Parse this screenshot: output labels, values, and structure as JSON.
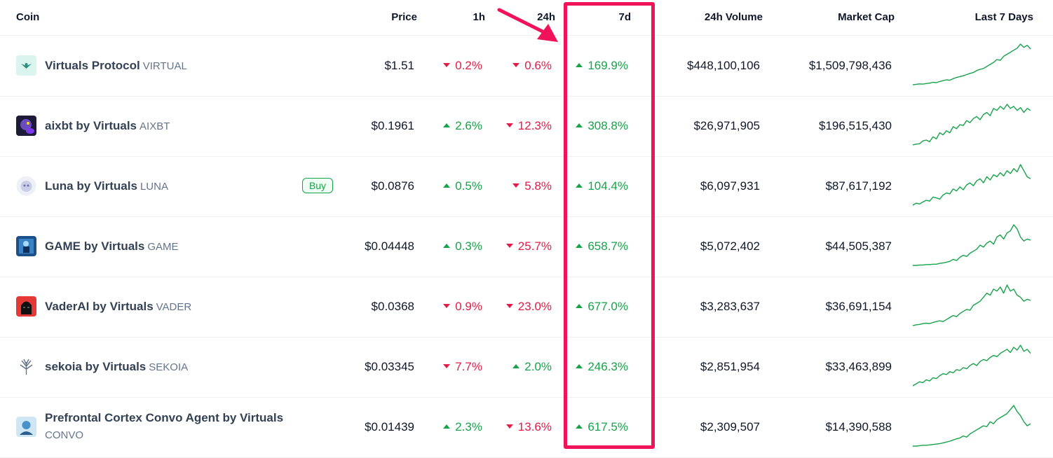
{
  "headers": {
    "coin": "Coin",
    "price": "Price",
    "h1": "1h",
    "h24": "24h",
    "d7": "7d",
    "volume": "24h Volume",
    "mcap": "Market Cap",
    "last7": "Last 7 Days"
  },
  "buy_label": "Buy",
  "colors": {
    "up": "#16a34a",
    "down": "#e11d48",
    "highlight": "#f0135a"
  },
  "rows": [
    {
      "name": "Virtuals Protocol",
      "symbol": "VIRTUAL",
      "price": "$1.51",
      "h1": "0.2%",
      "h1_dir": "down",
      "h24": "0.6%",
      "h24_dir": "down",
      "d7": "169.9%",
      "d7_dir": "up",
      "volume": "$448,100,106",
      "mcap": "$1,509,798,436",
      "logo": "virtuals-logo"
    },
    {
      "name": "aixbt by Virtuals",
      "symbol": "AIXBT",
      "price": "$0.1961",
      "h1": "2.6%",
      "h1_dir": "up",
      "h24": "12.3%",
      "h24_dir": "down",
      "d7": "308.8%",
      "d7_dir": "up",
      "volume": "$26,971,905",
      "mcap": "$196,515,430",
      "logo": "aixbt-logo"
    },
    {
      "name": "Luna by Virtuals",
      "symbol": "LUNA",
      "price": "$0.0876",
      "h1": "0.5%",
      "h1_dir": "up",
      "h24": "5.8%",
      "h24_dir": "down",
      "d7": "104.4%",
      "d7_dir": "up",
      "volume": "$6,097,931",
      "mcap": "$87,617,192",
      "logo": "luna-logo"
    },
    {
      "name": "GAME by Virtuals",
      "symbol": "GAME",
      "price": "$0.04448",
      "h1": "0.3%",
      "h1_dir": "up",
      "h24": "25.7%",
      "h24_dir": "down",
      "d7": "658.7%",
      "d7_dir": "up",
      "volume": "$5,072,402",
      "mcap": "$44,505,387",
      "logo": "game-logo"
    },
    {
      "name": "VaderAI by Virtuals",
      "symbol": "VADER",
      "price": "$0.0368",
      "h1": "0.9%",
      "h1_dir": "down",
      "h24": "23.0%",
      "h24_dir": "down",
      "d7": "677.0%",
      "d7_dir": "up",
      "volume": "$3,283,637",
      "mcap": "$36,691,154",
      "logo": "vader-logo"
    },
    {
      "name": "sekoia by Virtuals",
      "symbol": "SEKOIA",
      "price": "$0.03345",
      "h1": "7.7%",
      "h1_dir": "down",
      "h24": "2.0%",
      "h24_dir": "up",
      "d7": "246.3%",
      "d7_dir": "up",
      "volume": "$2,851,954",
      "mcap": "$33,463,899",
      "logo": "sekoia-logo"
    },
    {
      "name": "Prefrontal Cortex Convo Agent by Virtuals",
      "symbol": "CONVO",
      "price": "$0.01439",
      "h1": "2.3%",
      "h1_dir": "up",
      "h24": "13.6%",
      "h24_dir": "down",
      "d7": "617.5%",
      "d7_dir": "up",
      "volume": "$2,309,507",
      "mcap": "$14,390,588",
      "logo": "convo-logo"
    }
  ]
}
